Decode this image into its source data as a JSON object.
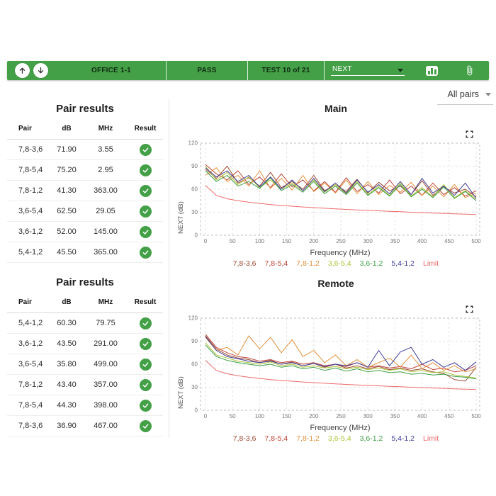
{
  "toolbar": {
    "accent_color": "#43a047",
    "cells": [
      "OFFICE 1-1",
      "PASS",
      "TEST 10 of 21"
    ],
    "next_dropdown": {
      "value": "NEXT"
    }
  },
  "pair_filter": {
    "value": "All pairs"
  },
  "tables": [
    {
      "title": "Pair results",
      "headers": [
        "Pair",
        "dB",
        "MHz",
        "Result"
      ],
      "rows": [
        {
          "pair": "7,8-3,6",
          "db": "71.90",
          "mhz": "3.55",
          "result": "pass"
        },
        {
          "pair": "7,8-5,4",
          "db": "75.20",
          "mhz": "2.95",
          "result": "pass"
        },
        {
          "pair": "7,8-1,2",
          "db": "41.30",
          "mhz": "363.00",
          "result": "pass"
        },
        {
          "pair": "3,6-5,4",
          "db": "62.50",
          "mhz": "29.05",
          "result": "pass"
        },
        {
          "pair": "3,6-1,2",
          "db": "52.00",
          "mhz": "145.00",
          "result": "pass"
        },
        {
          "pair": "5,4-1,2",
          "db": "45.50",
          "mhz": "365.00",
          "result": "pass"
        }
      ]
    },
    {
      "title": "Pair results",
      "headers": [
        "Pair",
        "dB",
        "MHz",
        "Result"
      ],
      "rows": [
        {
          "pair": "5,4-1,2",
          "db": "60.30",
          "mhz": "79.75",
          "result": "pass"
        },
        {
          "pair": "3,6-1,2",
          "db": "43.50",
          "mhz": "291.00",
          "result": "pass"
        },
        {
          "pair": "3,6-5,4",
          "db": "35.80",
          "mhz": "499.00",
          "result": "pass"
        },
        {
          "pair": "7,8-1,2",
          "db": "43.40",
          "mhz": "357.00",
          "result": "pass"
        },
        {
          "pair": "7,8-5,4",
          "db": "44.30",
          "mhz": "398.00",
          "result": "pass"
        },
        {
          "pair": "7,8-3,6",
          "db": "36.90",
          "mhz": "467.00",
          "result": "pass"
        }
      ]
    }
  ],
  "chart_data": [
    {
      "type": "line",
      "title": "Main",
      "xlabel": "Frequency (MHz)",
      "ylabel": "NEXT (dB)",
      "xlim": [
        0,
        500
      ],
      "ylim": [
        0,
        120
      ],
      "xticks": [
        0,
        50,
        100,
        150,
        200,
        250,
        300,
        350,
        400,
        450,
        500
      ],
      "yticks": [
        0,
        30,
        60,
        90,
        120
      ],
      "grid": "dashed",
      "legend_position": "bottom",
      "x": [
        0,
        20,
        40,
        60,
        80,
        100,
        120,
        140,
        160,
        180,
        200,
        220,
        240,
        260,
        280,
        300,
        320,
        340,
        360,
        380,
        400,
        420,
        440,
        460,
        480,
        500
      ],
      "series": [
        {
          "name": "7,8-3,6",
          "color": "#9a4a33",
          "values": [
            86,
            74,
            90,
            68,
            75,
            64,
            82,
            62,
            70,
            60,
            78,
            58,
            66,
            57,
            73,
            55,
            69,
            58,
            64,
            53,
            71,
            52,
            63,
            55,
            60,
            50
          ]
        },
        {
          "name": "7,8-5,4",
          "color": "#c04339",
          "values": [
            92,
            80,
            72,
            84,
            66,
            76,
            62,
            80,
            63,
            72,
            58,
            70,
            56,
            75,
            57,
            66,
            55,
            72,
            54,
            64,
            52,
            68,
            53,
            62,
            51,
            58
          ]
        },
        {
          "name": "7,8-1,2",
          "color": "#e2913c",
          "values": [
            78,
            88,
            70,
            78,
            64,
            84,
            61,
            74,
            59,
            78,
            57,
            68,
            55,
            72,
            54,
            70,
            53,
            65,
            56,
            69,
            52,
            64,
            50,
            66,
            49,
            55
          ]
        },
        {
          "name": "3,6-5,4",
          "color": "#adc438",
          "values": [
            90,
            72,
            82,
            66,
            76,
            62,
            72,
            60,
            68,
            58,
            72,
            56,
            66,
            54,
            70,
            53,
            64,
            52,
            68,
            51,
            62,
            50,
            66,
            49,
            58,
            47
          ]
        },
        {
          "name": "3,6-1,2",
          "color": "#3e9e47",
          "values": [
            84,
            70,
            78,
            64,
            70,
            61,
            75,
            58,
            66,
            56,
            70,
            54,
            64,
            53,
            68,
            52,
            62,
            51,
            66,
            50,
            60,
            49,
            63,
            48,
            57,
            45
          ]
        },
        {
          "name": "5,4-1,2",
          "color": "#3d3d99",
          "values": [
            88,
            76,
            84,
            70,
            78,
            63,
            76,
            60,
            72,
            58,
            74,
            57,
            68,
            55,
            72,
            56,
            66,
            54,
            70,
            53,
            74,
            55,
            64,
            52,
            68,
            48
          ]
        },
        {
          "name": "Limit",
          "color": "#ef6a6a",
          "values": [
            65,
            52,
            47.5,
            45,
            43,
            41.5,
            40,
            38.8,
            37.8,
            36.8,
            36,
            35.2,
            34.4,
            33.7,
            33,
            32.4,
            31.8,
            31.2,
            30.6,
            30,
            29.5,
            29,
            28.5,
            28,
            27.5,
            27
          ]
        }
      ]
    },
    {
      "type": "line",
      "title": "Remote",
      "xlabel": "Frequency (MHz)",
      "ylabel": "NEXT (dB)",
      "xlim": [
        0,
        500
      ],
      "ylim": [
        0,
        120
      ],
      "xticks": [
        0,
        50,
        100,
        150,
        200,
        250,
        300,
        350,
        400,
        450,
        500
      ],
      "yticks": [
        0,
        30,
        60,
        90,
        120
      ],
      "grid": "dashed",
      "legend_position": "bottom",
      "x": [
        0,
        20,
        40,
        60,
        80,
        100,
        120,
        140,
        160,
        180,
        200,
        220,
        240,
        260,
        280,
        300,
        320,
        340,
        360,
        380,
        400,
        420,
        440,
        460,
        480,
        500
      ],
      "series": [
        {
          "name": "7,8-3,6",
          "color": "#9a4a33",
          "values": [
            97,
            80,
            72,
            68,
            66,
            62,
            65,
            60,
            63,
            58,
            61,
            56,
            60,
            55,
            58,
            54,
            57,
            53,
            55,
            52,
            54,
            50,
            48,
            40,
            38,
            56
          ]
        },
        {
          "name": "7,8-5,4",
          "color": "#c04339",
          "values": [
            99,
            82,
            75,
            70,
            68,
            64,
            66,
            62,
            64,
            60,
            62,
            58,
            60,
            57,
            62,
            56,
            58,
            55,
            57,
            54,
            60,
            53,
            55,
            50,
            52,
            58
          ]
        },
        {
          "name": "7,8-1,2",
          "color": "#e2913c",
          "values": [
            95,
            78,
            82,
            72,
            97,
            80,
            95,
            75,
            92,
            70,
            78,
            62,
            72,
            58,
            66,
            56,
            62,
            68,
            56,
            72,
            54,
            62,
            52,
            58,
            50,
            54
          ]
        },
        {
          "name": "3,6-5,4",
          "color": "#adc438",
          "values": [
            88,
            72,
            68,
            64,
            62,
            60,
            63,
            58,
            60,
            56,
            58,
            55,
            57,
            54,
            56,
            53,
            55,
            52,
            54,
            50,
            52,
            49,
            50,
            46,
            44,
            42
          ]
        },
        {
          "name": "3,6-1,2",
          "color": "#3e9e47",
          "values": [
            85,
            70,
            65,
            62,
            60,
            58,
            60,
            56,
            58,
            54,
            56,
            52,
            55,
            51,
            54,
            50,
            52,
            49,
            50,
            47,
            48,
            46,
            47,
            44,
            43,
            41
          ]
        },
        {
          "name": "5,4-1,2",
          "color": "#3d3d99",
          "values": [
            96,
            78,
            70,
            67,
            64,
            62,
            64,
            60,
            62,
            58,
            61,
            57,
            60,
            58,
            62,
            56,
            78,
            58,
            76,
            82,
            60,
            66,
            56,
            62,
            52,
            63
          ]
        },
        {
          "name": "Limit",
          "color": "#ef6a6a",
          "values": [
            65,
            52,
            47.5,
            45,
            43,
            41.5,
            40,
            38.8,
            37.8,
            36.8,
            36,
            35.2,
            34.4,
            33.7,
            33,
            32.4,
            31.8,
            31.2,
            30.6,
            30,
            29.5,
            29,
            28.5,
            28,
            27.5,
            27
          ]
        }
      ]
    }
  ]
}
